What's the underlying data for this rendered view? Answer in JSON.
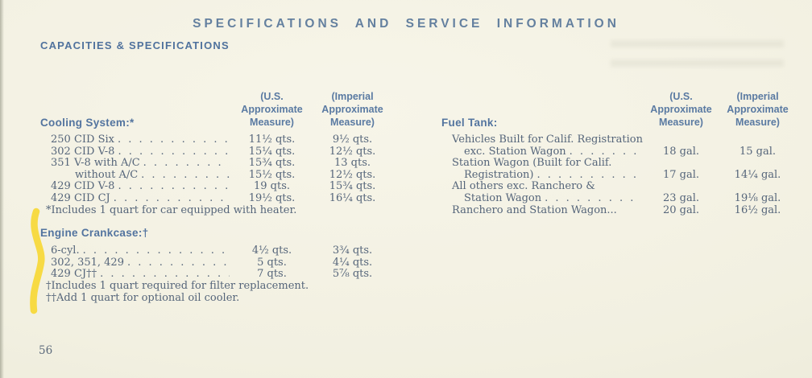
{
  "page": {
    "title": "SPECIFICATIONS AND SERVICE INFORMATION",
    "section_heading": "CAPACITIES & SPECIFICATIONS",
    "page_number": "56",
    "paper_color": "#f2f0e1",
    "heading_blue": "#53749f",
    "body_blue": "#55657a",
    "highlight_color": "#f8d41c"
  },
  "column_headers": {
    "us": [
      "(U.S.",
      "Approximate",
      "Measure)"
    ],
    "imperial": [
      "(Imperial",
      "Approximate",
      "Measure)"
    ]
  },
  "left": {
    "cooling": {
      "heading": "Cooling System:*",
      "rows": [
        {
          "indent": 0,
          "label": "250 CID Six",
          "leader": true,
          "us": "11½ qts.",
          "imperial": "9½ qts."
        },
        {
          "indent": 0,
          "label": "302 CID V-8",
          "leader": true,
          "us": "15¼ qts.",
          "imperial": "12½ qts."
        },
        {
          "indent": 0,
          "label": "351 V-8 with A/C",
          "leader": true,
          "us": "15¾ qts.",
          "imperial": "13 qts."
        },
        {
          "indent": 2,
          "label": "without A/C",
          "leader": true,
          "us": "15½ qts.",
          "imperial": "12½ qts."
        },
        {
          "indent": 0,
          "label": "429 CID V-8",
          "leader": true,
          "us": "19 qts.",
          "imperial": "15¾ qts."
        },
        {
          "indent": 0,
          "label": "429 CID CJ",
          "leader": true,
          "us": "19½ qts.",
          "imperial": "16¼ qts."
        }
      ],
      "footnote": "*Includes 1 quart for car equipped with heater."
    },
    "crankcase": {
      "heading": "Engine Crankcase:†",
      "rows": [
        {
          "indent": 0,
          "label": "6-cyl.",
          "leader": true,
          "us": "4½ qts.",
          "imperial": "3¾ qts."
        },
        {
          "indent": 0,
          "label": "302, 351, 429",
          "leader": true,
          "us": "5 qts.",
          "imperial": "4¼ qts."
        },
        {
          "indent": 0,
          "label": "429 CJ††",
          "leader": true,
          "us": "7 qts.",
          "imperial": "5⅞ qts."
        }
      ],
      "footnotes": [
        "†Includes 1 quart required for filter replacement.",
        "††Add 1 quart for optional oil cooler."
      ]
    }
  },
  "right": {
    "fuel_tank": {
      "heading": "Fuel Tank:",
      "rows": [
        {
          "indent": 0,
          "label": "Vehicles Built for Calif. Registration",
          "leader": false
        },
        {
          "indent": 1,
          "label": "exc. Station Wagon",
          "leader": true,
          "us": "18 gal.",
          "imperial": "15 gal."
        },
        {
          "indent": 0,
          "label": "Station Wagon (Built for Calif.",
          "leader": false
        },
        {
          "indent": 1,
          "label": "Registration)",
          "leader": true,
          "us": "17 gal.",
          "imperial": "14¼ gal."
        },
        {
          "indent": 0,
          "label": "All others exc. Ranchero &",
          "leader": false
        },
        {
          "indent": 1,
          "label": "Station Wagon",
          "leader": true,
          "us": "23 gal.",
          "imperial": "19⅛ gal."
        },
        {
          "indent": 0,
          "label": "Ranchero and Station Wagon...",
          "leader": false,
          "us": "20 gal.",
          "imperial": "16½ gal."
        }
      ]
    }
  }
}
